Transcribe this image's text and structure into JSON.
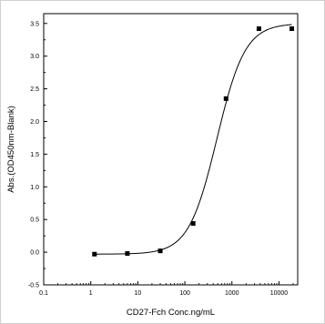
{
  "chart_data": {
    "type": "scatter",
    "xlabel": "CD27-Fch Conc.ng/mL",
    "ylabel": "Abs.(OD450nm-Blank)",
    "x_scale": "log",
    "xlim": [
      0.1,
      25000
    ],
    "ylim": [
      -0.5,
      3.65
    ],
    "x_ticks": [
      0.1,
      1,
      10,
      100,
      1000,
      10000
    ],
    "x_tick_labels": [
      "0.1",
      "1",
      "10",
      "100",
      "1000",
      "10000"
    ],
    "y_ticks": [
      -0.5,
      0.0,
      0.5,
      1.0,
      1.5,
      2.0,
      2.5,
      3.0,
      3.5
    ],
    "y_tick_labels": [
      "-0.5",
      "0.0",
      "0.5",
      "1.0",
      "1.5",
      "2.0",
      "2.5",
      "3.0",
      "3.5"
    ],
    "grid": false,
    "series": [
      {
        "points": [
          {
            "x": 1.2,
            "y": -0.03
          },
          {
            "x": 6.0,
            "y": -0.02
          },
          {
            "x": 30,
            "y": 0.02
          },
          {
            "x": 150,
            "y": 0.44
          },
          {
            "x": 750,
            "y": 2.35
          },
          {
            "x": 3750,
            "y": 3.42
          },
          {
            "x": 18750,
            "y": 3.42
          }
        ],
        "fit": {
          "model": "4PL",
          "bottom": -0.03,
          "top": 3.5,
          "ec50": 480,
          "hill": 1.45
        }
      }
    ]
  }
}
